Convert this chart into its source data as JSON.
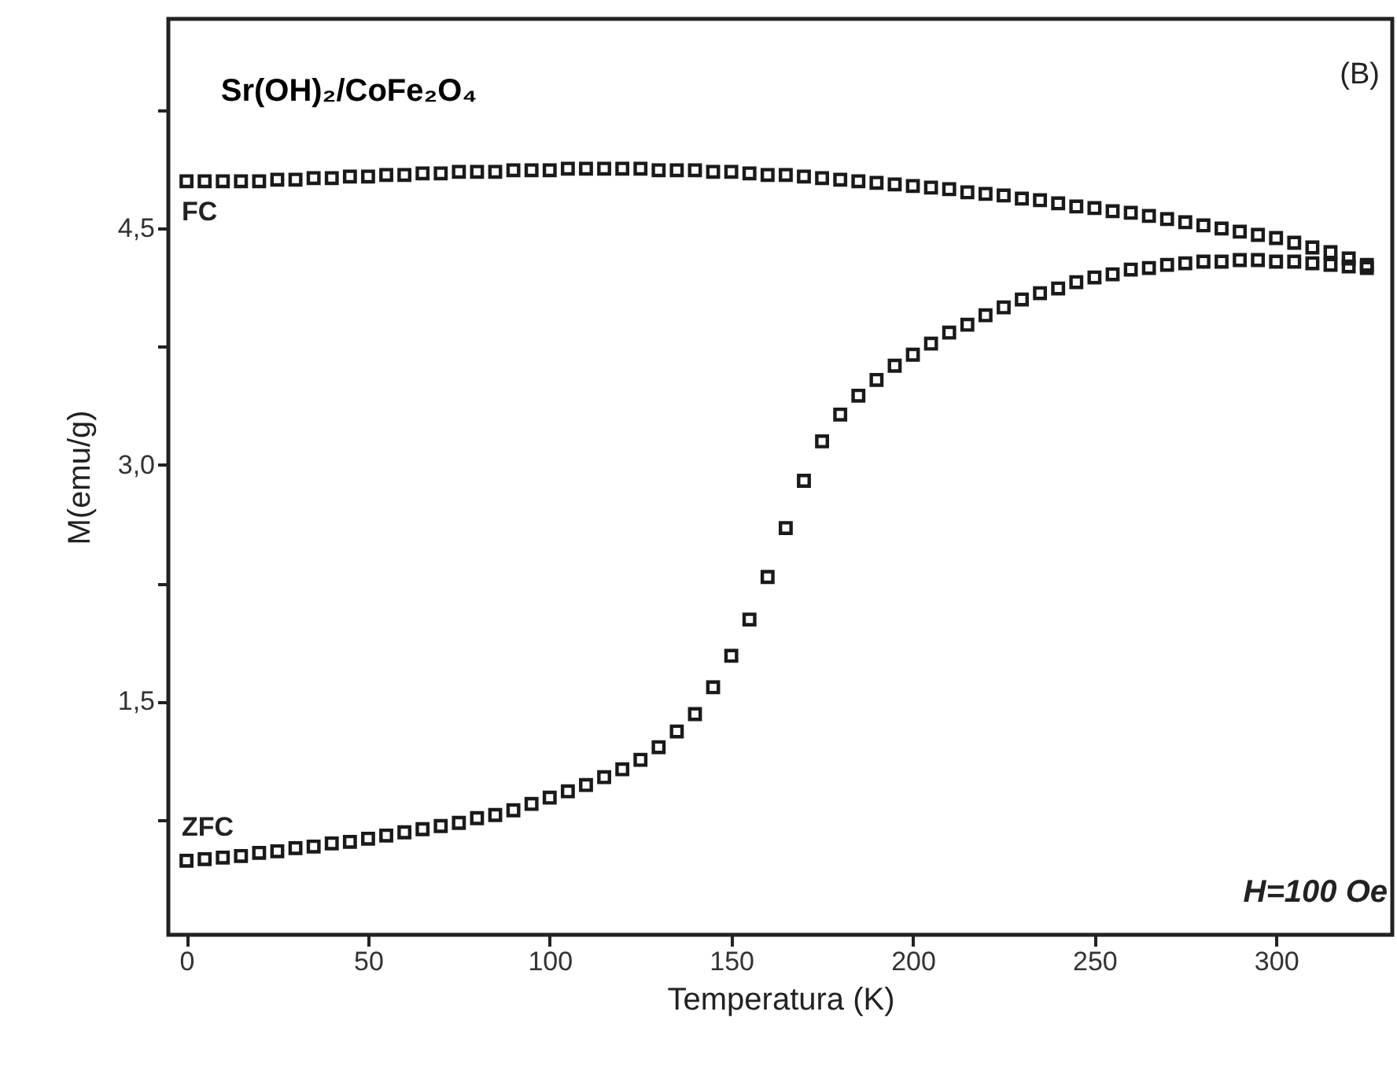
{
  "chart_data": {
    "type": "scatter",
    "title": "Sr(OH)₂/CoFe₂O₄",
    "xlabel": "Temperatura (K)",
    "ylabel": "M(emu/g)",
    "annotations": [
      "(B)",
      "H=100 Oe"
    ],
    "x": [
      0,
      5,
      10,
      15,
      20,
      25,
      30,
      35,
      40,
      45,
      50,
      55,
      60,
      65,
      70,
      75,
      80,
      85,
      90,
      95,
      100,
      105,
      110,
      115,
      120,
      125,
      130,
      135,
      140,
      145,
      150,
      155,
      160,
      165,
      170,
      175,
      180,
      185,
      190,
      195,
      200,
      205,
      210,
      215,
      220,
      225,
      230,
      235,
      240,
      245,
      250,
      255,
      260,
      265,
      270,
      275,
      280,
      285,
      290,
      295,
      300,
      305,
      310,
      315,
      320,
      325
    ],
    "series": [
      {
        "name": "FC",
        "color": "#1a1a1a",
        "values": [
          4.8,
          4.8,
          4.8,
          4.8,
          4.8,
          4.81,
          4.81,
          4.82,
          4.82,
          4.83,
          4.83,
          4.84,
          4.84,
          4.85,
          4.85,
          4.86,
          4.86,
          4.86,
          4.87,
          4.87,
          4.87,
          4.88,
          4.88,
          4.88,
          4.88,
          4.88,
          4.87,
          4.87,
          4.87,
          4.86,
          4.86,
          4.85,
          4.84,
          4.84,
          4.83,
          4.82,
          4.81,
          4.8,
          4.79,
          4.78,
          4.77,
          4.76,
          4.75,
          4.73,
          4.72,
          4.71,
          4.69,
          4.68,
          4.66,
          4.64,
          4.63,
          4.61,
          4.6,
          4.58,
          4.56,
          4.54,
          4.52,
          4.5,
          4.48,
          4.46,
          4.44,
          4.41,
          4.38,
          4.35,
          4.31,
          4.27
        ]
      },
      {
        "name": "ZFC",
        "color": "#1a1a1a",
        "values": [
          0.49,
          0.5,
          0.51,
          0.52,
          0.54,
          0.55,
          0.57,
          0.58,
          0.6,
          0.61,
          0.63,
          0.65,
          0.67,
          0.69,
          0.71,
          0.73,
          0.76,
          0.78,
          0.81,
          0.85,
          0.89,
          0.93,
          0.97,
          1.02,
          1.07,
          1.13,
          1.21,
          1.31,
          1.42,
          1.59,
          1.79,
          2.02,
          2.29,
          2.6,
          2.9,
          3.15,
          3.32,
          3.44,
          3.54,
          3.63,
          3.7,
          3.77,
          3.84,
          3.89,
          3.95,
          4.0,
          4.05,
          4.09,
          4.12,
          4.16,
          4.19,
          4.21,
          4.24,
          4.25,
          4.27,
          4.28,
          4.29,
          4.29,
          4.3,
          4.3,
          4.29,
          4.29,
          4.28,
          4.27,
          4.26,
          4.25
        ]
      }
    ],
    "xlim": [
      -5,
      332
    ],
    "xticks": [
      0,
      50,
      100,
      150,
      200,
      250,
      300
    ],
    "ylim": [
      0.02,
      5.83
    ],
    "yticks": [
      {
        "value": 0.75,
        "label": null
      },
      {
        "value": 1.5,
        "label": "1,5"
      },
      {
        "value": 2.25,
        "label": null
      },
      {
        "value": 3.0,
        "label": "3,0"
      },
      {
        "value": 3.75,
        "label": null
      },
      {
        "value": 4.5,
        "label": "4,5"
      },
      {
        "value": 5.25,
        "label": null
      }
    ],
    "marker": "square",
    "grid": false,
    "legend": false
  }
}
